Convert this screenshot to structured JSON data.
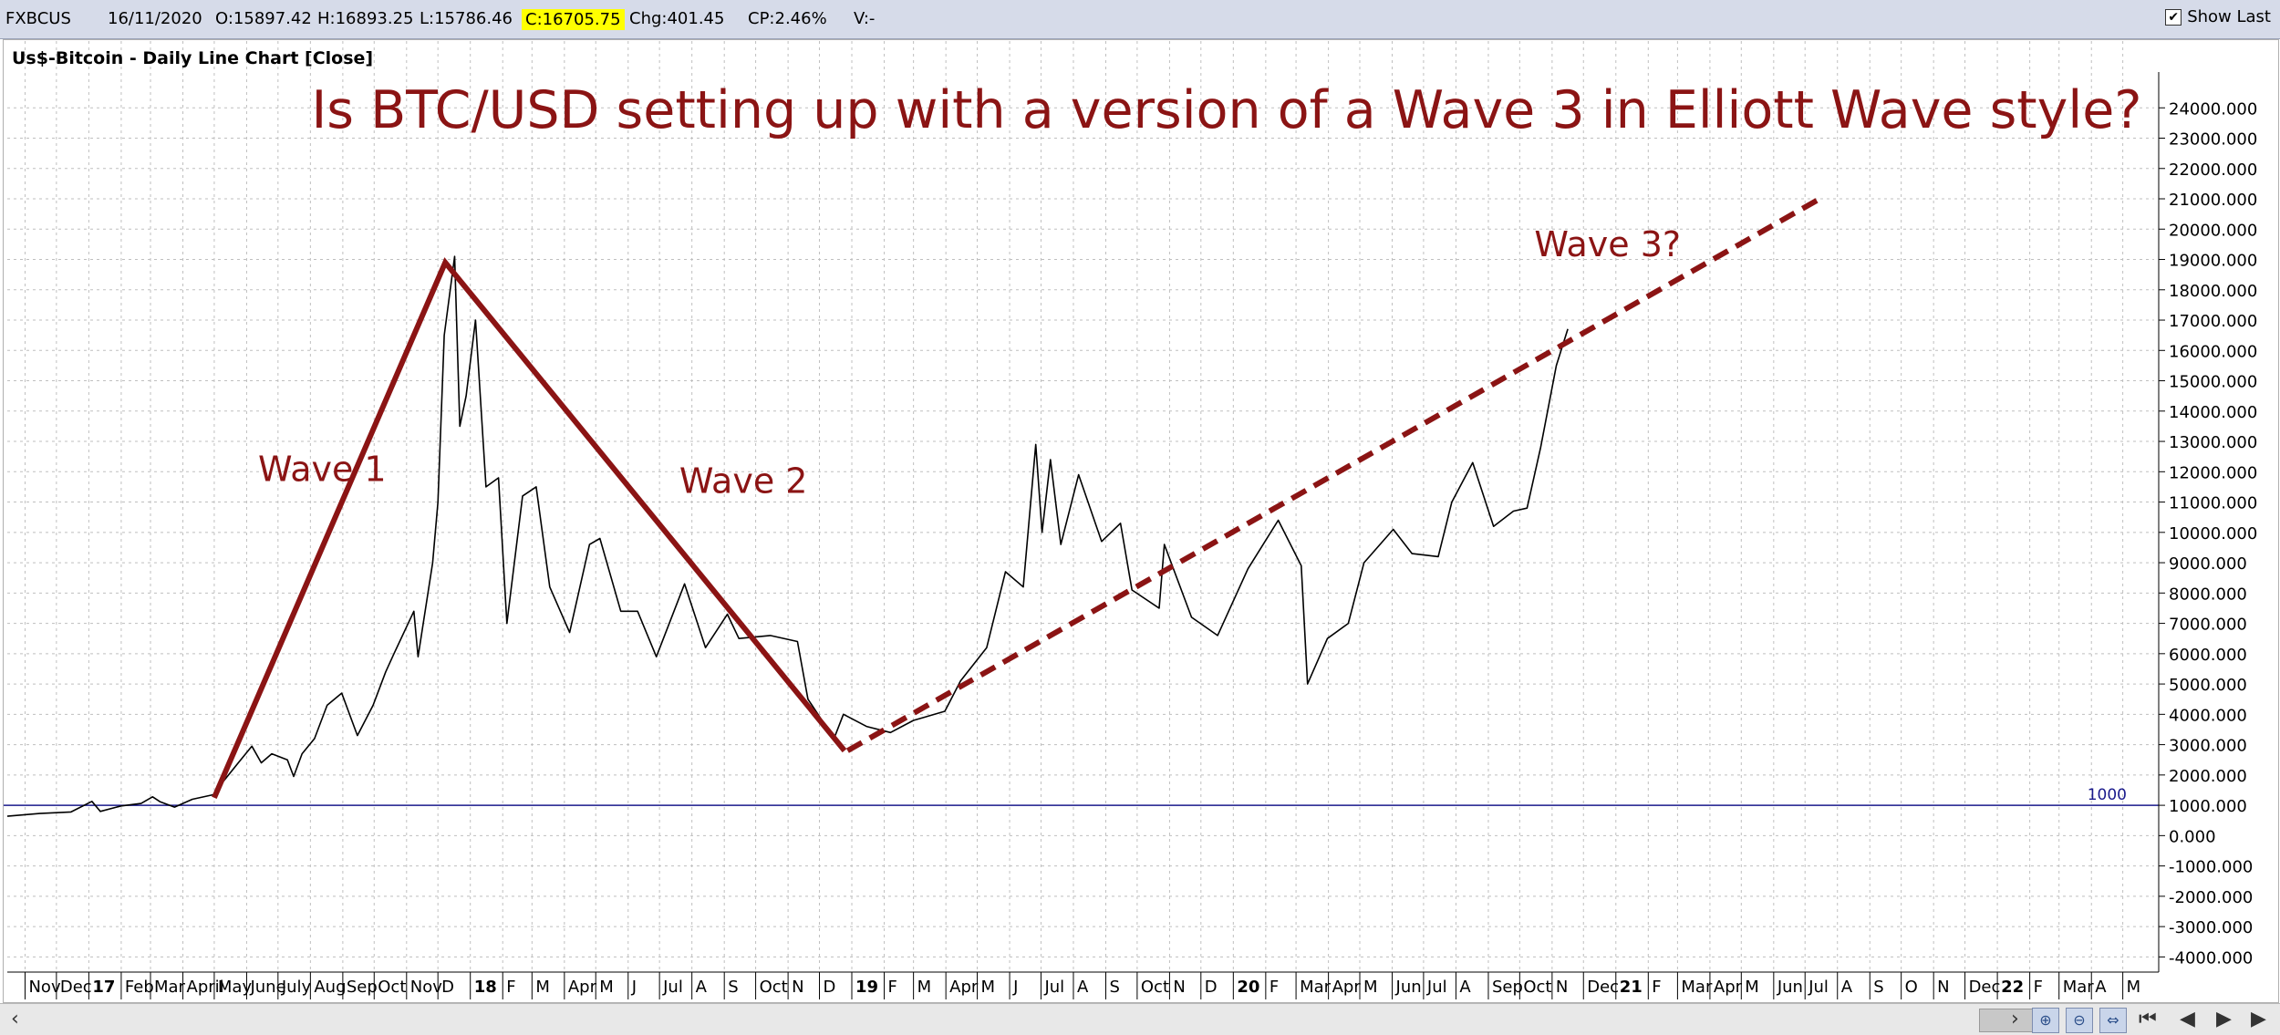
{
  "header": {
    "symbol": "FXBCUS",
    "date": "16/11/2020",
    "open": "O:15897.42",
    "high": "H:16893.25",
    "low": "L:15786.46",
    "close": "C:16705.75",
    "change": "Chg:401.45",
    "change_pct": "CP:2.46%",
    "volume": "V:-",
    "show_last_label": "Show Last",
    "show_last_checked": true
  },
  "chart_title": "Us$-Bitcoin - Daily Line Chart [Close]",
  "colors": {
    "price_line": "#000000",
    "annotation": "#8b1414",
    "reference_line": "#1a1a8c",
    "grid": "#bfbfbf",
    "close_badge": "#ffff00"
  },
  "chart_data": {
    "type": "line",
    "title": "Is BTC/USD setting up with a version of a Wave 3 in Elliott Wave style?",
    "ylim": [
      -4500,
      25000
    ],
    "y_ticks": [
      24000,
      23000,
      22000,
      21000,
      20000,
      19000,
      18000,
      17000,
      16000,
      15000,
      14000,
      13000,
      12000,
      11000,
      10000,
      9000,
      8000,
      7000,
      6000,
      5000,
      4000,
      3000,
      2000,
      1000,
      0,
      -1000,
      -2000,
      -3000,
      -4000
    ],
    "y_tick_labels": [
      "24000.000",
      "23000.000",
      "22000.000",
      "21000.000",
      "20000.000",
      "19000.000",
      "18000.000",
      "17000.000",
      "16000.000",
      "15000.000",
      "14000.000",
      "13000.000",
      "12000.000",
      "11000.000",
      "10000.000",
      "9000.000",
      "8000.000",
      "7000.000",
      "6000.000",
      "5000.000",
      "4000.000",
      "3000.000",
      "2000.000",
      "1000.000",
      "0.000",
      "-1000.000",
      "-2000.000",
      "-3000.000",
      "-4000.000"
    ],
    "x_range": [
      "2016-10-15",
      "2022-05-31"
    ],
    "x_ticks": [
      {
        "date": "2016-11-01",
        "label": "Nov",
        "bold": false
      },
      {
        "date": "2016-12-01",
        "label": "Dec",
        "bold": false
      },
      {
        "date": "2017-01-01",
        "label": "17",
        "bold": true
      },
      {
        "date": "2017-02-01",
        "label": "Feb",
        "bold": false
      },
      {
        "date": "2017-03-01",
        "label": "Mar",
        "bold": false
      },
      {
        "date": "2017-04-01",
        "label": "April",
        "bold": false
      },
      {
        "date": "2017-05-01",
        "label": "May",
        "bold": false
      },
      {
        "date": "2017-06-01",
        "label": "June",
        "bold": false
      },
      {
        "date": "2017-07-01",
        "label": "July",
        "bold": false
      },
      {
        "date": "2017-08-01",
        "label": "Aug",
        "bold": false
      },
      {
        "date": "2017-09-01",
        "label": "Sep",
        "bold": false
      },
      {
        "date": "2017-10-01",
        "label": "Oct",
        "bold": false
      },
      {
        "date": "2017-11-01",
        "label": "Nov",
        "bold": false
      },
      {
        "date": "2017-12-01",
        "label": "D",
        "bold": false
      },
      {
        "date": "2018-01-01",
        "label": "18",
        "bold": true
      },
      {
        "date": "2018-02-01",
        "label": "F",
        "bold": false
      },
      {
        "date": "2018-03-01",
        "label": "M",
        "bold": false
      },
      {
        "date": "2018-04-01",
        "label": "Apr",
        "bold": false
      },
      {
        "date": "2018-05-01",
        "label": "M",
        "bold": false
      },
      {
        "date": "2018-06-01",
        "label": "J",
        "bold": false
      },
      {
        "date": "2018-07-01",
        "label": "Jul",
        "bold": false
      },
      {
        "date": "2018-08-01",
        "label": "A",
        "bold": false
      },
      {
        "date": "2018-09-01",
        "label": "S",
        "bold": false
      },
      {
        "date": "2018-10-01",
        "label": "Oct",
        "bold": false
      },
      {
        "date": "2018-11-01",
        "label": "N",
        "bold": false
      },
      {
        "date": "2018-12-01",
        "label": "D",
        "bold": false
      },
      {
        "date": "2019-01-01",
        "label": "19",
        "bold": true
      },
      {
        "date": "2019-02-01",
        "label": "F",
        "bold": false
      },
      {
        "date": "2019-03-01",
        "label": "M",
        "bold": false
      },
      {
        "date": "2019-04-01",
        "label": "Apr",
        "bold": false
      },
      {
        "date": "2019-05-01",
        "label": "M",
        "bold": false
      },
      {
        "date": "2019-06-01",
        "label": "J",
        "bold": false
      },
      {
        "date": "2019-07-01",
        "label": "Jul",
        "bold": false
      },
      {
        "date": "2019-08-01",
        "label": "A",
        "bold": false
      },
      {
        "date": "2019-09-01",
        "label": "S",
        "bold": false
      },
      {
        "date": "2019-10-01",
        "label": "Oct",
        "bold": false
      },
      {
        "date": "2019-11-01",
        "label": "N",
        "bold": false
      },
      {
        "date": "2019-12-01",
        "label": "D",
        "bold": false
      },
      {
        "date": "2020-01-01",
        "label": "20",
        "bold": true
      },
      {
        "date": "2020-02-01",
        "label": "F",
        "bold": false
      },
      {
        "date": "2020-03-01",
        "label": "Mar",
        "bold": false
      },
      {
        "date": "2020-04-01",
        "label": "Apr",
        "bold": false
      },
      {
        "date": "2020-05-01",
        "label": "M",
        "bold": false
      },
      {
        "date": "2020-06-01",
        "label": "Jun",
        "bold": false
      },
      {
        "date": "2020-07-01",
        "label": "Jul",
        "bold": false
      },
      {
        "date": "2020-08-01",
        "label": "A",
        "bold": false
      },
      {
        "date": "2020-09-01",
        "label": "Sep",
        "bold": false
      },
      {
        "date": "2020-10-01",
        "label": "Oct",
        "bold": false
      },
      {
        "date": "2020-11-01",
        "label": "N",
        "bold": false
      },
      {
        "date": "2020-12-01",
        "label": "Dec",
        "bold": false
      },
      {
        "date": "2021-01-01",
        "label": "21",
        "bold": true
      },
      {
        "date": "2021-02-01",
        "label": "F",
        "bold": false
      },
      {
        "date": "2021-03-01",
        "label": "Mar",
        "bold": false
      },
      {
        "date": "2021-04-01",
        "label": "Apr",
        "bold": false
      },
      {
        "date": "2021-05-01",
        "label": "M",
        "bold": false
      },
      {
        "date": "2021-06-01",
        "label": "Jun",
        "bold": false
      },
      {
        "date": "2021-07-01",
        "label": "Jul",
        "bold": false
      },
      {
        "date": "2021-08-01",
        "label": "A",
        "bold": false
      },
      {
        "date": "2021-09-01",
        "label": "S",
        "bold": false
      },
      {
        "date": "2021-10-01",
        "label": "O",
        "bold": false
      },
      {
        "date": "2021-11-01",
        "label": "N",
        "bold": false
      },
      {
        "date": "2021-12-01",
        "label": "Dec",
        "bold": false
      },
      {
        "date": "2022-01-01",
        "label": "22",
        "bold": true
      },
      {
        "date": "2022-02-01",
        "label": "F",
        "bold": false
      },
      {
        "date": "2022-03-01",
        "label": "Mar",
        "bold": false
      },
      {
        "date": "2022-04-01",
        "label": "A",
        "bold": false
      },
      {
        "date": "2022-05-01",
        "label": "M",
        "bold": false
      }
    ],
    "grid": true,
    "series": [
      {
        "style": "solid-thin",
        "points": [
          [
            "2016-10-15",
            640
          ],
          [
            "2016-11-15",
            730
          ],
          [
            "2016-12-15",
            780
          ],
          [
            "2017-01-04",
            1130
          ],
          [
            "2017-01-12",
            800
          ],
          [
            "2017-02-01",
            980
          ],
          [
            "2017-02-20",
            1060
          ],
          [
            "2017-03-03",
            1280
          ],
          [
            "2017-03-10",
            1120
          ],
          [
            "2017-03-24",
            940
          ],
          [
            "2017-04-10",
            1200
          ],
          [
            "2017-04-30",
            1350
          ],
          [
            "2017-05-10",
            1800
          ],
          [
            "2017-05-24",
            2400
          ],
          [
            "2017-06-06",
            2950
          ],
          [
            "2017-06-15",
            2400
          ],
          [
            "2017-06-25",
            2700
          ],
          [
            "2017-07-10",
            2500
          ],
          [
            "2017-07-16",
            1950
          ],
          [
            "2017-07-24",
            2700
          ],
          [
            "2017-08-05",
            3200
          ],
          [
            "2017-08-17",
            4300
          ],
          [
            "2017-08-31",
            4700
          ],
          [
            "2017-09-15",
            3300
          ],
          [
            "2017-09-30",
            4300
          ],
          [
            "2017-10-12",
            5400
          ],
          [
            "2017-10-20",
            6000
          ],
          [
            "2017-11-08",
            7400
          ],
          [
            "2017-11-12",
            5900
          ],
          [
            "2017-11-26",
            9000
          ],
          [
            "2017-12-01",
            11000
          ],
          [
            "2017-12-07",
            16500
          ],
          [
            "2017-12-17",
            19100
          ],
          [
            "2017-12-22",
            13500
          ],
          [
            "2017-12-28",
            14500
          ],
          [
            "2018-01-06",
            17000
          ],
          [
            "2018-01-16",
            11500
          ],
          [
            "2018-01-28",
            11800
          ],
          [
            "2018-02-05",
            7000
          ],
          [
            "2018-02-20",
            11200
          ],
          [
            "2018-03-05",
            11500
          ],
          [
            "2018-03-18",
            8200
          ],
          [
            "2018-04-06",
            6700
          ],
          [
            "2018-04-25",
            9600
          ],
          [
            "2018-05-05",
            9800
          ],
          [
            "2018-05-25",
            7400
          ],
          [
            "2018-06-10",
            7400
          ],
          [
            "2018-06-28",
            5900
          ],
          [
            "2018-07-25",
            8300
          ],
          [
            "2018-08-14",
            6200
          ],
          [
            "2018-09-04",
            7300
          ],
          [
            "2018-09-15",
            6500
          ],
          [
            "2018-10-15",
            6600
          ],
          [
            "2018-11-10",
            6400
          ],
          [
            "2018-11-20",
            4500
          ],
          [
            "2018-12-15",
            3200
          ],
          [
            "2018-12-24",
            4000
          ],
          [
            "2019-01-15",
            3600
          ],
          [
            "2019-02-07",
            3400
          ],
          [
            "2019-03-01",
            3800
          ],
          [
            "2019-03-31",
            4100
          ],
          [
            "2019-04-15",
            5100
          ],
          [
            "2019-05-10",
            6200
          ],
          [
            "2019-05-28",
            8700
          ],
          [
            "2019-06-14",
            8200
          ],
          [
            "2019-06-26",
            12900
          ],
          [
            "2019-07-02",
            10000
          ],
          [
            "2019-07-10",
            12400
          ],
          [
            "2019-07-20",
            9600
          ],
          [
            "2019-08-06",
            11900
          ],
          [
            "2019-08-28",
            9700
          ],
          [
            "2019-09-15",
            10300
          ],
          [
            "2019-09-26",
            8100
          ],
          [
            "2019-10-22",
            7500
          ],
          [
            "2019-10-27",
            9600
          ],
          [
            "2019-11-22",
            7200
          ],
          [
            "2019-12-17",
            6600
          ],
          [
            "2020-01-15",
            8800
          ],
          [
            "2020-02-13",
            10400
          ],
          [
            "2020-03-06",
            8900
          ],
          [
            "2020-03-12",
            5000
          ],
          [
            "2020-03-31",
            6500
          ],
          [
            "2020-04-20",
            7000
          ],
          [
            "2020-05-05",
            9000
          ],
          [
            "2020-06-02",
            10100
          ],
          [
            "2020-06-20",
            9300
          ],
          [
            "2020-07-15",
            9200
          ],
          [
            "2020-07-28",
            11000
          ],
          [
            "2020-08-17",
            12300
          ],
          [
            "2020-09-06",
            10200
          ],
          [
            "2020-09-25",
            10700
          ],
          [
            "2020-10-08",
            10800
          ],
          [
            "2020-10-21",
            12800
          ],
          [
            "2020-11-05",
            15500
          ],
          [
            "2020-11-16",
            16705.75
          ]
        ]
      },
      {
        "style": "annotation-solid",
        "points": [
          [
            "2017-05-01",
            1250
          ],
          [
            "2017-12-08",
            18900
          ],
          [
            "2018-12-25",
            2800
          ]
        ]
      },
      {
        "style": "annotation-dashed",
        "points": [
          [
            "2018-12-28",
            2800
          ],
          [
            "2021-07-15",
            21000
          ]
        ]
      }
    ],
    "reference_line": {
      "value": 1000,
      "label": "1000"
    },
    "annotations": [
      {
        "text": "Wave 1",
        "date": "2017-06-12",
        "value": 11700
      },
      {
        "text": "Wave 2",
        "date": "2018-07-20",
        "value": 11300
      },
      {
        "text": "Wave 3?",
        "date": "2020-10-15",
        "value": 19100
      }
    ]
  }
}
